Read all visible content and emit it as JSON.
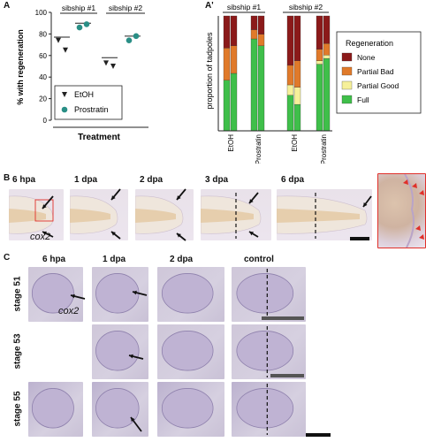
{
  "panelA": {
    "letter": "A",
    "ylabel": "% with regeneration",
    "xlabel": "Treatment",
    "groups": [
      "sibship #1",
      "sibship #2"
    ],
    "yticks": [
      "0",
      "20",
      "40",
      "60",
      "80",
      "100"
    ],
    "legend": [
      "EtOH",
      "Prostratin"
    ]
  },
  "panelA2": {
    "letter": "A'",
    "ylabel": "proportion of tadpoles",
    "groups": [
      "sibship #1",
      "sibship #2"
    ],
    "xticks": [
      "EtOH",
      "Prostratin",
      "EtOH",
      "Prostratin"
    ],
    "legend_title": "Regeneration",
    "legend": [
      "None",
      "Partial Bad",
      "Partial Good",
      "Full"
    ]
  },
  "panelB": {
    "letter": "B",
    "headers": [
      "6 hpa",
      "1 dpa",
      "2 dpa",
      "3 dpa",
      "6 dpa"
    ],
    "gene": "cox2"
  },
  "panelC": {
    "letter": "C",
    "headers": [
      "6 hpa",
      "1 dpa",
      "2 dpa",
      "control"
    ],
    "rows": [
      "stage 51",
      "stage 53",
      "stage 55"
    ],
    "gene": "cox2"
  },
  "colors": {
    "etoh": "#222222",
    "prostratin": "#2a8f86",
    "none": "#8b1a1a",
    "partial_bad": "#e07a2a",
    "partial_good": "#f6f09a",
    "full": "#3fbf4a",
    "arrow": "#111111",
    "red_marker": "#e0302a"
  },
  "chart_data": [
    {
      "type": "scatter",
      "title": "",
      "xlabel": "Treatment",
      "ylabel": "% with regeneration",
      "ylim": [
        0,
        100
      ],
      "categories": [
        "sibship #1",
        "sibship #2"
      ],
      "series": [
        {
          "name": "EtOH",
          "values": [
            [
              74,
              65
            ],
            [
              53,
              50
            ]
          ],
          "mean": [
            77,
            58
          ]
        },
        {
          "name": "Prostratin",
          "values": [
            [
              86,
              89
            ],
            [
              74,
              78
            ]
          ],
          "mean": [
            90,
            78
          ]
        }
      ],
      "legend": "inside-bottom"
    },
    {
      "type": "bar",
      "title": "",
      "ylabel": "proportion of tadpoles",
      "ylim": [
        0,
        1
      ],
      "groups": [
        "sibship #1",
        "sibship #2"
      ],
      "categories": [
        "EtOH",
        "EtOH",
        "Prostratin",
        "Prostratin",
        "EtOH",
        "EtOH",
        "Prostratin",
        "Prostratin"
      ],
      "series": [
        {
          "name": "Full",
          "values": [
            0.44,
            0.5,
            0.8,
            0.74,
            0.31,
            0.23,
            0.58,
            0.63
          ]
        },
        {
          "name": "Partial Good",
          "values": [
            0.0,
            0.0,
            0.0,
            0.0,
            0.09,
            0.15,
            0.03,
            0.03
          ]
        },
        {
          "name": "Partial Bad",
          "values": [
            0.28,
            0.24,
            0.08,
            0.1,
            0.17,
            0.23,
            0.1,
            0.1
          ]
        },
        {
          "name": "None",
          "values": [
            0.28,
            0.26,
            0.12,
            0.16,
            0.43,
            0.39,
            0.29,
            0.24
          ]
        }
      ],
      "legend": "right"
    }
  ]
}
